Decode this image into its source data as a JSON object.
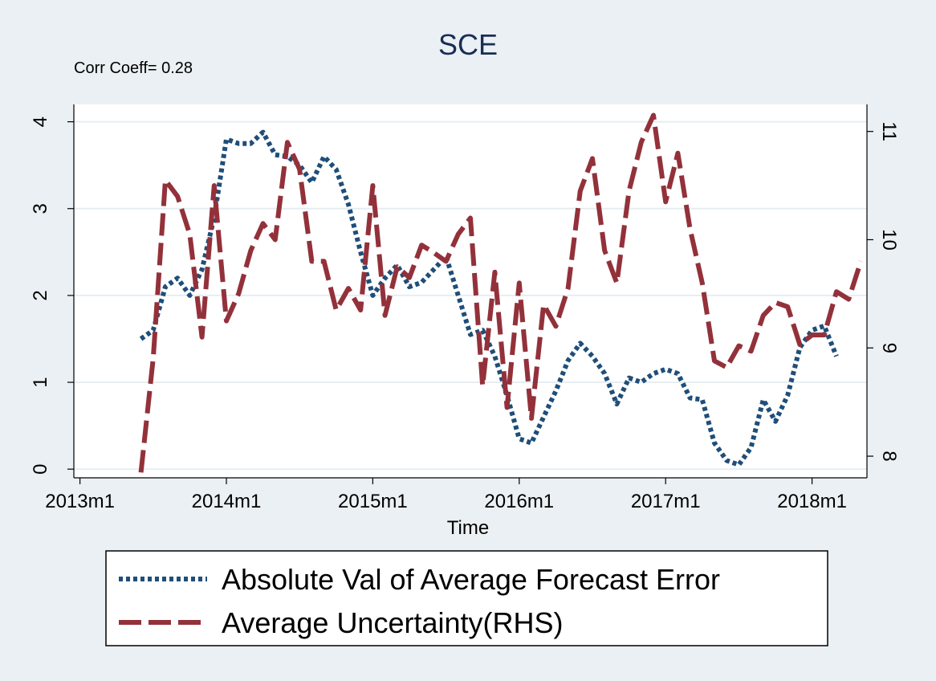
{
  "chart_data": {
    "type": "line",
    "title": "SCE",
    "annotation": "Corr Coeff= 0.28",
    "xlabel": "Time",
    "x_ticks": [
      "2013m1",
      "2014m1",
      "2015m1",
      "2016m1",
      "2017m1",
      "2018m1"
    ],
    "x_range": [
      "2013m1",
      "2018m5"
    ],
    "y_left": {
      "ticks": [
        0,
        1,
        2,
        3,
        4
      ],
      "range": [
        -0.1,
        4.2
      ]
    },
    "y_right": {
      "ticks": [
        8,
        9,
        10,
        11
      ],
      "range": [
        7.8,
        11.25
      ]
    },
    "grid": true,
    "legend_position": "bottom",
    "series": [
      {
        "name": "Absolute Val of Average Forecast Error",
        "axis": "left",
        "color": "#1f4e79",
        "style": "dotted",
        "points": [
          [
            "2013m6",
            1.5
          ],
          [
            "2013m7",
            1.6
          ],
          [
            "2013m8",
            2.1
          ],
          [
            "2013m9",
            2.2
          ],
          [
            "2013m10",
            2.0
          ],
          [
            "2013m11",
            2.3
          ],
          [
            "2013m12",
            2.9
          ],
          [
            "2014m1",
            3.8
          ],
          [
            "2014m2",
            3.75
          ],
          [
            "2014m3",
            3.75
          ],
          [
            "2014m4",
            3.88
          ],
          [
            "2014m5",
            3.62
          ],
          [
            "2014m6",
            3.6
          ],
          [
            "2014m7",
            3.5
          ],
          [
            "2014m8",
            3.3
          ],
          [
            "2014m9",
            3.6
          ],
          [
            "2014m10",
            3.45
          ],
          [
            "2014m11",
            3.05
          ],
          [
            "2014m12",
            2.5
          ],
          [
            "2015m1",
            2.0
          ],
          [
            "2015m2",
            2.2
          ],
          [
            "2015m3",
            2.35
          ],
          [
            "2015m4",
            2.1
          ],
          [
            "2015m5",
            2.15
          ],
          [
            "2015m6",
            2.3
          ],
          [
            "2015m7",
            2.45
          ],
          [
            "2015m8",
            2.0
          ],
          [
            "2015m9",
            1.55
          ],
          [
            "2015m10",
            1.6
          ],
          [
            "2015m11",
            1.3
          ],
          [
            "2015m12",
            0.85
          ],
          [
            "2016m1",
            0.35
          ],
          [
            "2016m2",
            0.3
          ],
          [
            "2016m3",
            0.6
          ],
          [
            "2016m4",
            0.9
          ],
          [
            "2016m5",
            1.25
          ],
          [
            "2016m6",
            1.45
          ],
          [
            "2016m7",
            1.3
          ],
          [
            "2016m8",
            1.1
          ],
          [
            "2016m9",
            0.75
          ],
          [
            "2016m10",
            1.05
          ],
          [
            "2016m11",
            1.0
          ],
          [
            "2016m12",
            1.1
          ],
          [
            "2017m1",
            1.15
          ],
          [
            "2017m2",
            1.1
          ],
          [
            "2017m3",
            0.82
          ],
          [
            "2017m4",
            0.8
          ],
          [
            "2017m5",
            0.3
          ],
          [
            "2017m6",
            0.1
          ],
          [
            "2017m7",
            0.05
          ],
          [
            "2017m8",
            0.25
          ],
          [
            "2017m9",
            0.8
          ],
          [
            "2017m10",
            0.55
          ],
          [
            "2017m11",
            0.85
          ],
          [
            "2017m12",
            1.4
          ],
          [
            "2018m1",
            1.6
          ],
          [
            "2018m2",
            1.65
          ],
          [
            "2018m3",
            1.3
          ]
        ]
      },
      {
        "name": "Average Uncertainty(RHS)",
        "axis": "right",
        "color": "#93313a",
        "style": "dashed",
        "points": [
          [
            "2013m6",
            7.85
          ],
          [
            "2013m7",
            8.9
          ],
          [
            "2013m8",
            10.55
          ],
          [
            "2013m9",
            10.4
          ],
          [
            "2013m10",
            10.05
          ],
          [
            "2013m11",
            9.1
          ],
          [
            "2013m12",
            10.5
          ],
          [
            "2014m1",
            9.25
          ],
          [
            "2014m2",
            9.5
          ],
          [
            "2014m3",
            9.9
          ],
          [
            "2014m4",
            10.15
          ],
          [
            "2014m5",
            10.0
          ],
          [
            "2014m6",
            10.9
          ],
          [
            "2014m7",
            10.65
          ],
          [
            "2014m8",
            9.8
          ],
          [
            "2014m9",
            9.8
          ],
          [
            "2014m10",
            9.35
          ],
          [
            "2014m11",
            9.55
          ],
          [
            "2014m12",
            9.35
          ],
          [
            "2015m1",
            10.5
          ],
          [
            "2015m2",
            9.3
          ],
          [
            "2015m3",
            9.75
          ],
          [
            "2015m4",
            9.65
          ],
          [
            "2015m5",
            9.95
          ],
          [
            "2015m6",
            9.88
          ],
          [
            "2015m7",
            9.8
          ],
          [
            "2015m8",
            10.05
          ],
          [
            "2015m9",
            10.2
          ],
          [
            "2015m10",
            8.65
          ],
          [
            "2015m11",
            9.7
          ],
          [
            "2015m12",
            8.45
          ],
          [
            "2016m1",
            9.6
          ],
          [
            "2016m2",
            8.35
          ],
          [
            "2016m3",
            9.4
          ],
          [
            "2016m4",
            9.2
          ],
          [
            "2016m5",
            9.55
          ],
          [
            "2016m6",
            10.45
          ],
          [
            "2016m7",
            10.75
          ],
          [
            "2016m8",
            9.9
          ],
          [
            "2016m9",
            9.6
          ],
          [
            "2016m10",
            10.45
          ],
          [
            "2016m11",
            10.9
          ],
          [
            "2016m12",
            11.15
          ],
          [
            "2017m1",
            10.35
          ],
          [
            "2017m2",
            10.8
          ],
          [
            "2017m3",
            10.1
          ],
          [
            "2017m4",
            9.6
          ],
          [
            "2017m5",
            8.88
          ],
          [
            "2017m6",
            8.82
          ],
          [
            "2017m7",
            9.02
          ],
          [
            "2017m8",
            8.97
          ],
          [
            "2017m9",
            9.3
          ],
          [
            "2017m10",
            9.42
          ],
          [
            "2017m11",
            9.38
          ],
          [
            "2017m12",
            9.03
          ],
          [
            "2018m1",
            9.12
          ],
          [
            "2018m2",
            9.12
          ],
          [
            "2018m3",
            9.52
          ],
          [
            "2018m4",
            9.45
          ],
          [
            "2018m5",
            9.8
          ]
        ]
      }
    ]
  }
}
